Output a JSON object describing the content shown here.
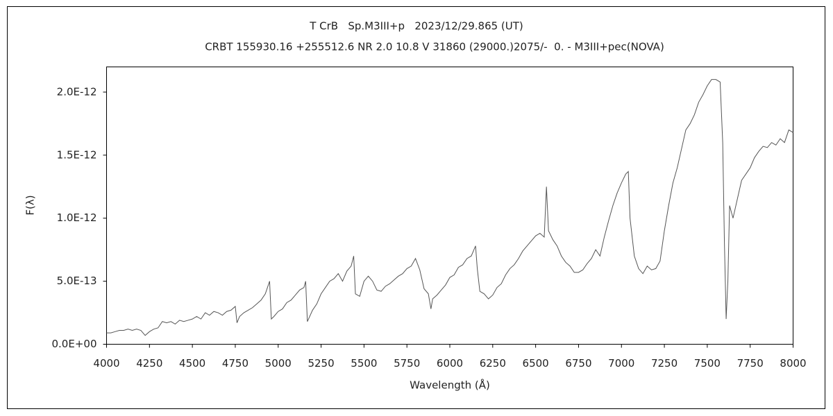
{
  "chart_data": {
    "type": "line",
    "title": "T CrB   Sp.M3III+p   2023/12/29.865 (UT)",
    "subtitle": "CRBT 155930.16 +255512.6 NR 2.0 10.8 V 31860 (29000.)2075/-  0. - M3III+pec(NOVA)",
    "x_label": "Wavelength (Å)",
    "y_label": "F(λ)",
    "xlim": [
      4000,
      8000
    ],
    "xticks": [
      4000,
      4250,
      4500,
      4750,
      5000,
      5250,
      5500,
      5750,
      6000,
      6250,
      6500,
      6750,
      7000,
      7250,
      7500,
      7750,
      8000
    ],
    "ylim": [
      0,
      2.2e-12
    ],
    "yticks": [
      {
        "value": 0,
        "label": "0.0E+00"
      },
      {
        "value": 5e-13,
        "label": "5.0E-13"
      },
      {
        "value": 1e-12,
        "label": "1.0E-12"
      },
      {
        "value": 1.5e-12,
        "label": "1.5E-12"
      },
      {
        "value": 2e-12,
        "label": "2.0E-12"
      }
    ],
    "series": [
      {
        "color": "#555555",
        "x": [
          4000,
          4025,
          4050,
          4075,
          4100,
          4125,
          4150,
          4175,
          4200,
          4225,
          4250,
          4275,
          4300,
          4325,
          4350,
          4375,
          4400,
          4425,
          4450,
          4475,
          4500,
          4525,
          4550,
          4575,
          4600,
          4625,
          4650,
          4675,
          4700,
          4725,
          4750,
          4760,
          4775,
          4800,
          4825,
          4850,
          4875,
          4900,
          4925,
          4950,
          4960,
          4975,
          5000,
          5025,
          5050,
          5075,
          5100,
          5125,
          5150,
          5160,
          5170,
          5200,
          5225,
          5250,
          5275,
          5300,
          5325,
          5350,
          5375,
          5400,
          5425,
          5440,
          5450,
          5475,
          5500,
          5525,
          5550,
          5575,
          5600,
          5625,
          5650,
          5675,
          5700,
          5725,
          5750,
          5775,
          5800,
          5825,
          5850,
          5875,
          5890,
          5900,
          5925,
          5950,
          5975,
          6000,
          6025,
          6050,
          6075,
          6100,
          6125,
          6150,
          6160,
          6175,
          6200,
          6225,
          6250,
          6275,
          6300,
          6325,
          6350,
          6375,
          6400,
          6425,
          6450,
          6475,
          6500,
          6525,
          6550,
          6563,
          6575,
          6600,
          6625,
          6650,
          6675,
          6700,
          6725,
          6750,
          6775,
          6800,
          6825,
          6850,
          6875,
          6900,
          6925,
          6950,
          6975,
          7000,
          7025,
          7040,
          7050,
          7075,
          7100,
          7125,
          7150,
          7175,
          7200,
          7225,
          7250,
          7275,
          7300,
          7325,
          7350,
          7375,
          7400,
          7425,
          7450,
          7475,
          7500,
          7525,
          7550,
          7575,
          7590,
          7600,
          7610,
          7620,
          7630,
          7650,
          7675,
          7700,
          7725,
          7750,
          7775,
          7800,
          7825,
          7850,
          7875,
          7900,
          7925,
          7950,
          7975,
          8000
        ],
        "values": [
          9e-14,
          9e-14,
          1e-13,
          1.1e-13,
          1.1e-13,
          1.2e-13,
          1.1e-13,
          1.2e-13,
          1.1e-13,
          7e-14,
          1e-13,
          1.2e-13,
          1.3e-13,
          1.8e-13,
          1.7e-13,
          1.8e-13,
          1.6e-13,
          1.9e-13,
          1.8e-13,
          1.9e-13,
          2e-13,
          2.2e-13,
          2e-13,
          2.5e-13,
          2.3e-13,
          2.6e-13,
          2.5e-13,
          2.3e-13,
          2.6e-13,
          2.7e-13,
          3e-13,
          1.7e-13,
          2.2e-13,
          2.5e-13,
          2.7e-13,
          2.9e-13,
          3.2e-13,
          3.5e-13,
          4e-13,
          5e-13,
          2e-13,
          2.2e-13,
          2.6e-13,
          2.8e-13,
          3.3e-13,
          3.5e-13,
          3.9e-13,
          4.3e-13,
          4.5e-13,
          5e-13,
          1.8e-13,
          2.7e-13,
          3.2e-13,
          4e-13,
          4.5e-13,
          5e-13,
          5.2e-13,
          5.6e-13,
          5e-13,
          5.8e-13,
          6.2e-13,
          7e-13,
          4e-13,
          3.8e-13,
          5e-13,
          5.4e-13,
          5e-13,
          4.3e-13,
          4.2e-13,
          4.6e-13,
          4.8e-13,
          5.1e-13,
          5.4e-13,
          5.6e-13,
          6e-13,
          6.2e-13,
          6.8e-13,
          5.9e-13,
          4.4e-13,
          4e-13,
          2.8e-13,
          3.6e-13,
          3.9e-13,
          4.3e-13,
          4.7e-13,
          5.3e-13,
          5.5e-13,
          6.1e-13,
          6.3e-13,
          6.8e-13,
          7e-13,
          7.8e-13,
          6e-13,
          4.2e-13,
          4e-13,
          3.6e-13,
          3.9e-13,
          4.5e-13,
          4.8e-13,
          5.5e-13,
          6e-13,
          6.3e-13,
          6.8e-13,
          7.4e-13,
          7.8e-13,
          8.2e-13,
          8.6e-13,
          8.8e-13,
          8.5e-13,
          1.25e-12,
          9e-13,
          8.3e-13,
          7.8e-13,
          7e-13,
          6.5e-13,
          6.2e-13,
          5.7e-13,
          5.7e-13,
          5.9e-13,
          6.4e-13,
          6.8e-13,
          7.5e-13,
          7e-13,
          8.5e-13,
          9.8e-13,
          1.1e-12,
          1.2e-12,
          1.28e-12,
          1.35e-12,
          1.37e-12,
          1e-12,
          7e-13,
          6e-13,
          5.6e-13,
          6.2e-13,
          5.9e-13,
          6e-13,
          6.6e-13,
          9e-13,
          1.1e-12,
          1.28e-12,
          1.4e-12,
          1.55e-12,
          1.7e-12,
          1.75e-12,
          1.82e-12,
          1.92e-12,
          1.98e-12,
          2.05e-12,
          2.1e-12,
          2.1e-12,
          2.08e-12,
          1.6e-12,
          8e-13,
          2e-13,
          5e-13,
          1.1e-12,
          1e-12,
          1.15e-12,
          1.3e-12,
          1.35e-12,
          1.4e-12,
          1.48e-12,
          1.53e-12,
          1.57e-12,
          1.56e-12,
          1.6e-12,
          1.58e-12,
          1.63e-12,
          1.6e-12,
          1.7e-12,
          1.68e-12
        ]
      }
    ]
  }
}
